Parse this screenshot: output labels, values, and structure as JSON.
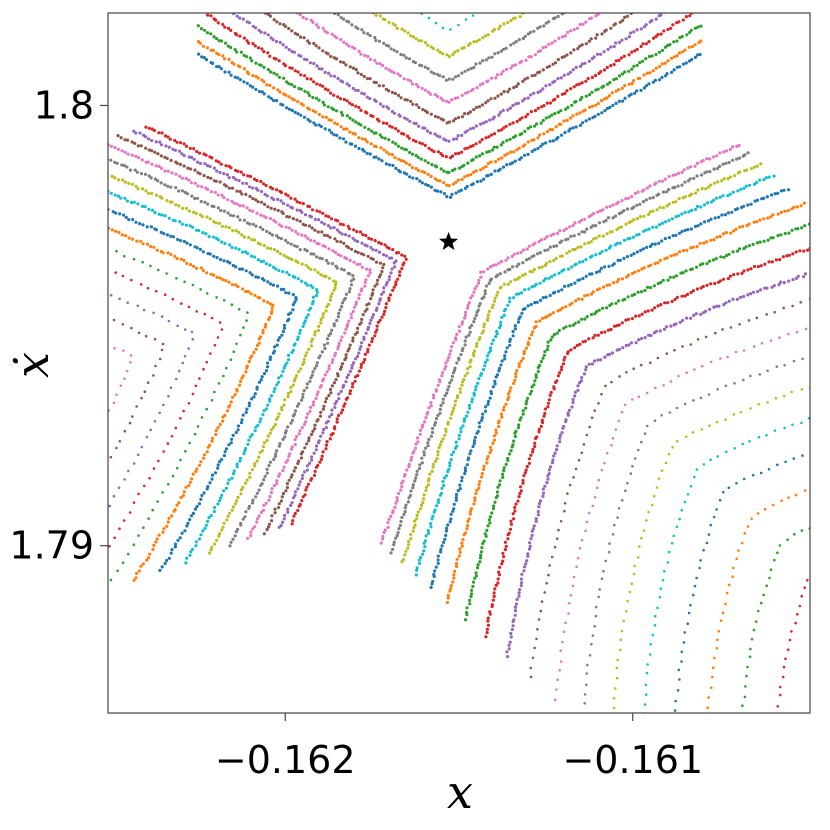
{
  "chart_data": {
    "type": "scatter",
    "title": "",
    "xlabel": "x",
    "ylabel": "ẋ",
    "xlim": [
      -0.16251,
      -0.16049
    ],
    "ylim": [
      1.7862,
      1.8021
    ],
    "x_ticks": [
      {
        "value": -0.162,
        "label": "−0.162"
      },
      {
        "value": -0.161,
        "label": "−0.161"
      }
    ],
    "y_ticks": [
      {
        "value": 1.8,
        "label": "1.8"
      },
      {
        "value": 1.79,
        "label": "1.79"
      }
    ],
    "grid": false,
    "legend": "none",
    "fixed_point": {
      "x": -0.16153,
      "y": 1.7969,
      "marker": "star",
      "color": "#000000"
    },
    "arm_angles_deg": [
      28,
      152,
      248
    ],
    "palette": [
      "#1f77b4",
      "#ff7f0e",
      "#2ca02c",
      "#d62728",
      "#9467bd",
      "#8c564b",
      "#e377c2",
      "#7f7f7f",
      "#bcbd22",
      "#17becf"
    ]
  }
}
